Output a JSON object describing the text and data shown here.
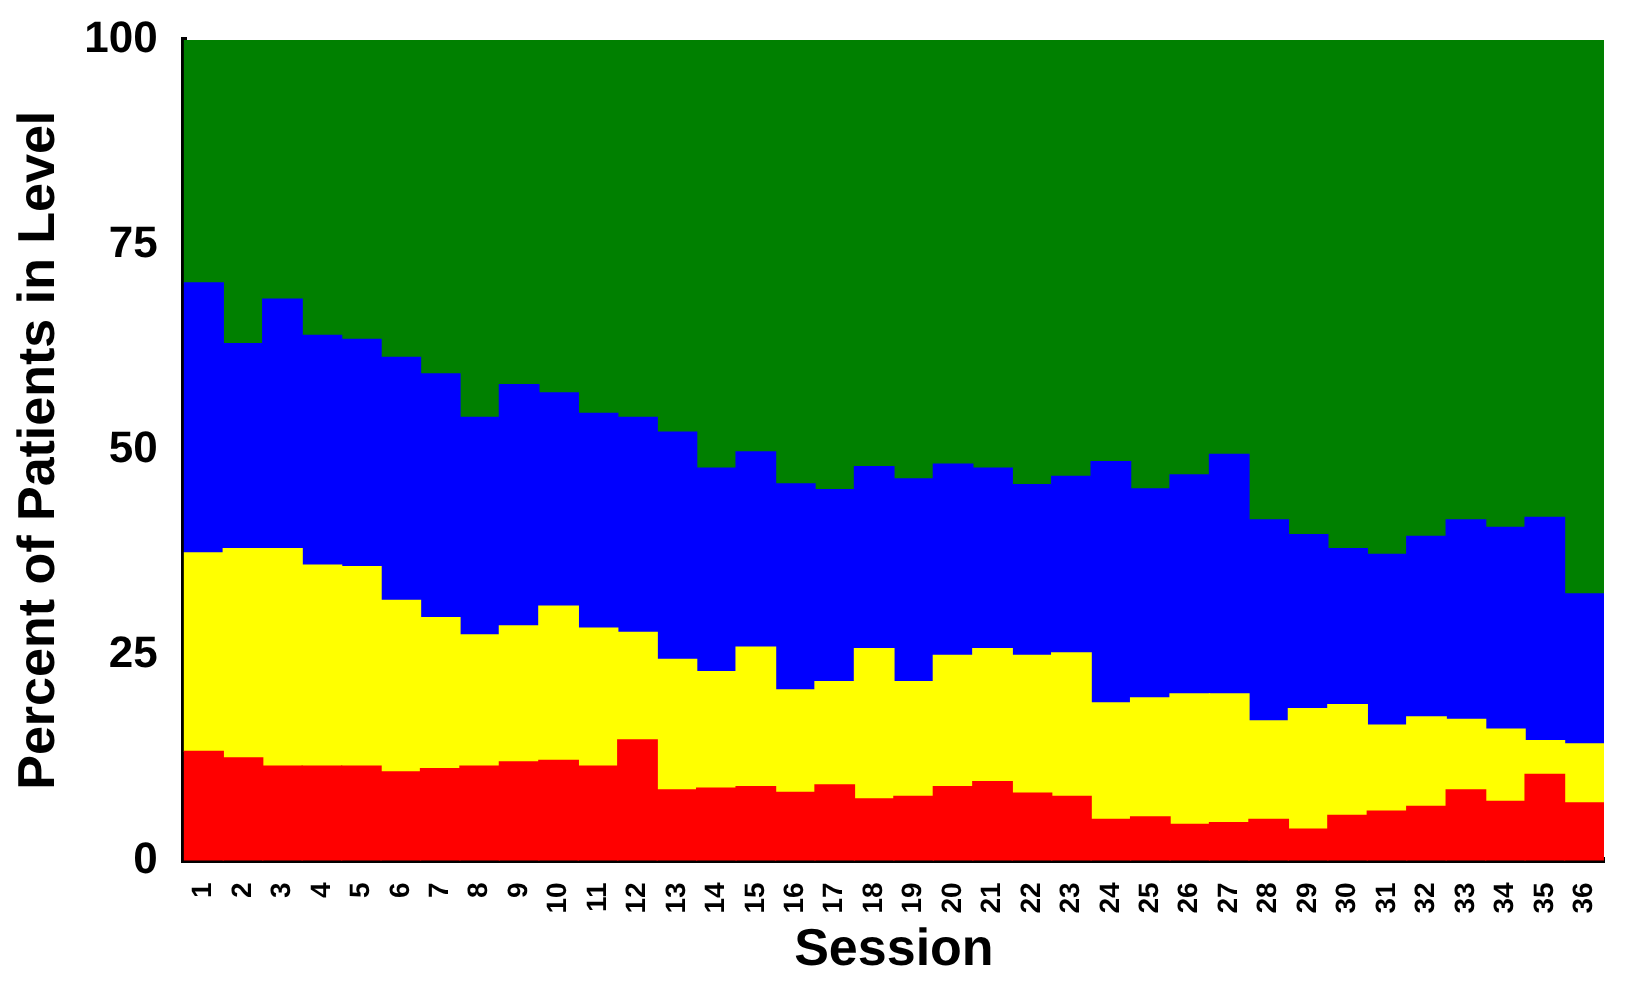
{
  "chart_data": {
    "type": "bar",
    "stacked": true,
    "xlabel": "Session",
    "ylabel": "Percent of Patients in Level",
    "categories": [
      "1",
      "2",
      "3",
      "4",
      "5",
      "6",
      "7",
      "8",
      "9",
      "10",
      "11",
      "12",
      "13",
      "14",
      "15",
      "16",
      "17",
      "18",
      "19",
      "20",
      "21",
      "22",
      "23",
      "24",
      "25",
      "26",
      "27",
      "28",
      "29",
      "30",
      "31",
      "32",
      "33",
      "34",
      "35",
      "36"
    ],
    "series": [
      {
        "color": "#ff0000",
        "values": [
          13.3,
          12.5,
          11.5,
          11.5,
          11.5,
          10.8,
          11.2,
          11.5,
          12,
          12.2,
          11.5,
          14.7,
          8.6,
          8.8,
          9,
          8.3,
          9.2,
          7.5,
          7.8,
          9,
          9.6,
          8.2,
          7.8,
          5,
          5.3,
          4.4,
          4.6,
          5,
          3.8,
          5.5,
          6,
          6.6,
          8.6,
          7.2,
          10.5,
          7
        ]
      },
      {
        "color": "#ffff00",
        "values": [
          24.2,
          25.5,
          26.5,
          24.5,
          24.3,
          20.9,
          18.4,
          16,
          16.6,
          18.8,
          16.8,
          13.1,
          15.9,
          14.2,
          17,
          12.5,
          12.6,
          18.3,
          14,
          16,
          16.2,
          16.8,
          17.5,
          14.2,
          14.5,
          15.9,
          15.7,
          12,
          14.7,
          13.5,
          10.5,
          10.9,
          8.6,
          8.8,
          4.1,
          7.2
        ]
      },
      {
        "color": "#0000ff",
        "values": [
          32.9,
          25,
          30.4,
          28,
          27.7,
          29.6,
          29.7,
          26.5,
          29.4,
          26,
          26.2,
          26.2,
          27.7,
          24.8,
          23.8,
          25.1,
          23.4,
          22.2,
          24.7,
          23.3,
          22,
          20.8,
          21.5,
          29.4,
          25.5,
          26.7,
          29.2,
          24.5,
          21.2,
          19,
          20.8,
          22,
          24.3,
          24.6,
          27.2,
          18.3
        ]
      },
      {
        "color": "#008000",
        "values": [
          29.6,
          37,
          31.6,
          36,
          36.5,
          38.7,
          40.7,
          46,
          42,
          43,
          45.5,
          46,
          47.8,
          52.2,
          50.2,
          54.1,
          54.8,
          52,
          53.5,
          51.7,
          52.2,
          54.2,
          53.2,
          51.4,
          54.7,
          53,
          50.5,
          58.5,
          60.3,
          62,
          62.7,
          60.5,
          58.5,
          59.4,
          58.2,
          67.5
        ]
      }
    ],
    "ylim": [
      0,
      100
    ],
    "yticks": [
      0,
      25,
      50,
      75,
      100
    ],
    "grid": false,
    "legend": false
  }
}
